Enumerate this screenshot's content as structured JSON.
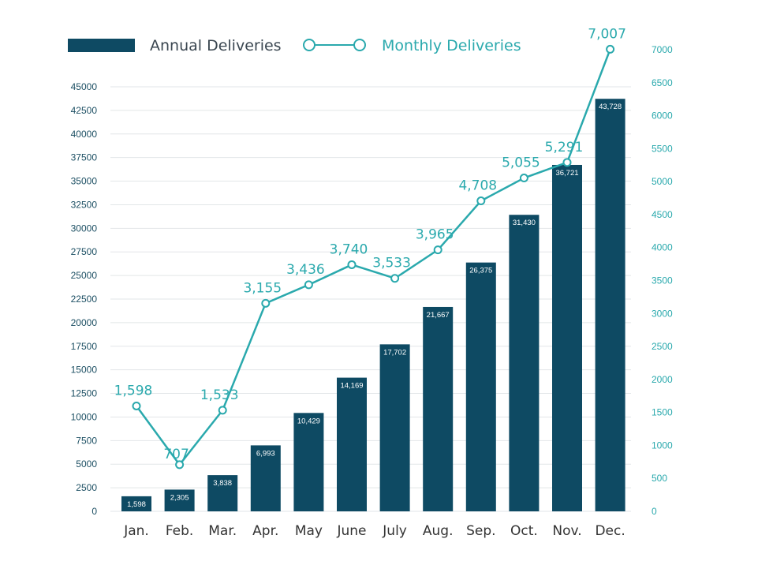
{
  "chart_data": {
    "type": "bar",
    "title": "",
    "categories": [
      "Jan.",
      "Feb.",
      "Mar.",
      "Apr.",
      "May",
      "June",
      "July",
      "Aug.",
      "Sep.",
      "Oct.",
      "Nov.",
      "Dec."
    ],
    "series": [
      {
        "name": "Annual Deliveries",
        "type": "bar",
        "axis": "left",
        "color": "#0e4a63",
        "values": [
          1598,
          2305,
          3838,
          6993,
          10429,
          14169,
          17702,
          21667,
          26375,
          31430,
          36721,
          43728
        ],
        "labels": [
          "1,598",
          "2,305",
          "3,838",
          "6,993",
          "10,429",
          "14,169",
          "17,702",
          "21,667",
          "26,375",
          "31,430",
          "36,721",
          "43,728"
        ]
      },
      {
        "name": "Monthly Deliveries",
        "type": "line",
        "axis": "right",
        "color": "#2aa9ad",
        "values": [
          1598,
          707,
          1533,
          3155,
          3436,
          3740,
          3533,
          3965,
          4708,
          5055,
          5291,
          7007
        ],
        "labels": [
          "1,598",
          "707",
          "1,533",
          "3,155",
          "3,436",
          "3,740",
          "3,533",
          "3,965",
          "4,708",
          "5,055",
          "5,291",
          "7,007"
        ]
      }
    ],
    "y_left": {
      "min": 0,
      "max": 45000,
      "ticks": [
        "0",
        "2500",
        "5000",
        "7500",
        "10000",
        "12500",
        "15000",
        "17500",
        "20000",
        "22500",
        "25000",
        "27500",
        "30000",
        "32500",
        "35000",
        "37500",
        "40000",
        "42500",
        "45000"
      ]
    },
    "y_right": {
      "min": 0,
      "max": 7000,
      "ticks": [
        "0",
        "500",
        "1000",
        "1500",
        "2000",
        "2500",
        "3000",
        "3500",
        "4000",
        "4500",
        "5000",
        "5500",
        "6000",
        "6500",
        "7000"
      ]
    },
    "grid": true,
    "legend_position": "top-left",
    "colors": {
      "bar": "#0e4a63",
      "line": "#2aa9ad",
      "left_ticks": "#1c4f63",
      "right_ticks": "#2aa9ad",
      "categories": "#333333",
      "grid": "#e2e6e8",
      "bar_label": "#ffffff"
    }
  }
}
